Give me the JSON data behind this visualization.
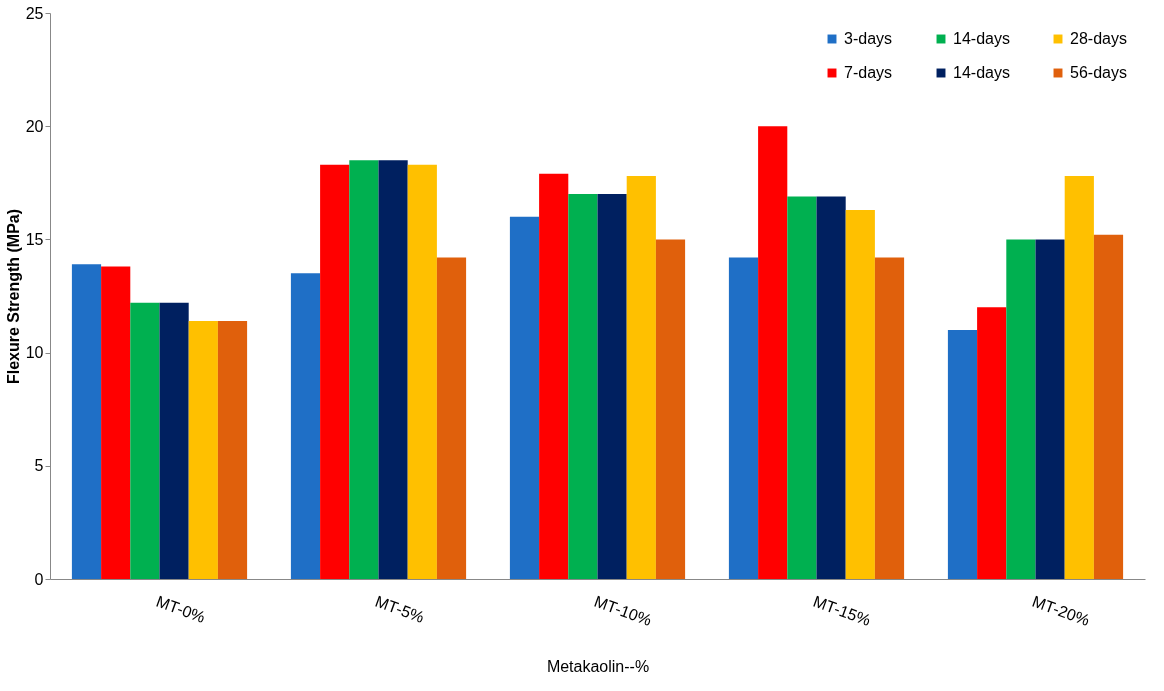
{
  "chart_data": {
    "type": "bar",
    "xlabel": "Metakaolin--%",
    "ylabel": "Flexure Strength (MPa)",
    "categories": [
      "MT-0%",
      "MT-5%",
      "MT-10%",
      "MT-15%",
      "MT-20%"
    ],
    "series": [
      {
        "name": "3-days",
        "color": "#1f6fc6",
        "values": [
          13.9,
          13.5,
          16.0,
          14.2,
          11.0
        ]
      },
      {
        "name": "7-days",
        "color": "#ff0000",
        "values": [
          13.8,
          18.3,
          17.9,
          20.0,
          12.0
        ]
      },
      {
        "name": "14-days",
        "color": "#00b050",
        "values": [
          12.2,
          18.5,
          17.0,
          16.9,
          15.0
        ]
      },
      {
        "name": "14-days",
        "color": "#002060",
        "values": [
          12.2,
          18.5,
          17.0,
          16.9,
          15.0
        ]
      },
      {
        "name": "28-days",
        "color": "#ffc000",
        "values": [
          11.4,
          18.3,
          17.8,
          16.3,
          17.8
        ]
      },
      {
        "name": "56-days",
        "color": "#e0600c",
        "values": [
          11.4,
          14.2,
          15.0,
          14.2,
          15.2
        ]
      }
    ],
    "ylim": [
      0,
      25
    ],
    "yticks": [
      0,
      5,
      10,
      15,
      20,
      25
    ],
    "grid": false,
    "legend": "top right"
  }
}
